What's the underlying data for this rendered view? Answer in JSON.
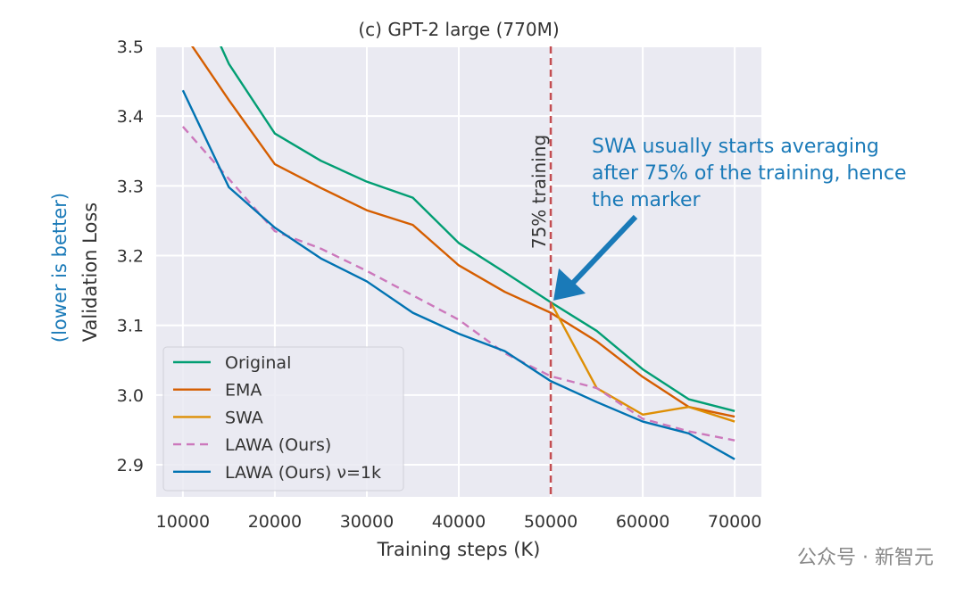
{
  "chart_data": {
    "type": "line",
    "title": "(c) GPT-2 large (770M)",
    "xlabel": "Training steps (K)",
    "ylabel": "Validation Loss",
    "ylabel_note": "(lower is better)",
    "xlim": [
      7100,
      72900
    ],
    "ylim": [
      2.854,
      3.5
    ],
    "xticks": [
      10000,
      20000,
      30000,
      40000,
      50000,
      60000,
      70000
    ],
    "yticks": [
      2.9,
      3.0,
      3.1,
      3.2,
      3.3,
      3.4,
      3.5
    ],
    "grid": true,
    "legend_position": "bottom-left",
    "series": [
      {
        "name": "Original",
        "color": "#029e73",
        "dash": false,
        "x": [
          10000,
          15000,
          20000,
          25000,
          30000,
          35000,
          40000,
          45000,
          50000,
          55000,
          60000,
          65000,
          70000
        ],
        "y": [
          3.62,
          3.475,
          3.375,
          3.336,
          3.306,
          3.283,
          3.218,
          3.176,
          3.133,
          3.092,
          3.037,
          2.994,
          2.977
        ]
      },
      {
        "name": "EMA",
        "color": "#d55e00",
        "dash": false,
        "x": [
          10000,
          15000,
          20000,
          25000,
          30000,
          35000,
          40000,
          45000,
          50000,
          55000,
          60000,
          65000,
          70000
        ],
        "y": [
          3.52,
          3.423,
          3.331,
          3.297,
          3.265,
          3.244,
          3.186,
          3.148,
          3.118,
          3.077,
          3.026,
          2.983,
          2.969
        ]
      },
      {
        "name": "SWA",
        "color": "#de8f05",
        "dash": false,
        "x": [
          50000,
          55000,
          60000,
          65000,
          70000
        ],
        "y": [
          3.133,
          3.01,
          2.972,
          2.983,
          2.962
        ]
      },
      {
        "name": "LAWA (Ours)",
        "color": "#cc78bc",
        "dash": true,
        "x": [
          10000,
          15000,
          20000,
          25000,
          30000,
          35000,
          40000,
          45000,
          50000,
          55000,
          60000,
          65000,
          70000
        ],
        "y": [
          3.385,
          3.31,
          3.235,
          3.21,
          3.178,
          3.143,
          3.108,
          3.06,
          3.027,
          3.01,
          2.966,
          2.948,
          2.935
        ]
      },
      {
        "name": "LAWA (Ours) ν=1k",
        "color": "#0173b2",
        "dash": false,
        "x": [
          10000,
          15000,
          20000,
          25000,
          30000,
          35000,
          40000,
          45000,
          50000,
          55000,
          60000,
          65000,
          70000
        ],
        "y": [
          3.437,
          3.298,
          3.24,
          3.196,
          3.163,
          3.118,
          3.088,
          3.063,
          3.02,
          2.99,
          2.962,
          2.945,
          2.908
        ]
      }
    ],
    "vline": {
      "x": 50000,
      "label": "75% training",
      "color": "#c44e52"
    },
    "annotation": {
      "lines": [
        "SWA usually starts averaging",
        "after 75% of the training, hence",
        "the marker"
      ],
      "color": "#1a7ab8",
      "arrow_to": {
        "x": 50000,
        "y": 3.133
      }
    }
  },
  "watermark": "公众号 · 新智元"
}
